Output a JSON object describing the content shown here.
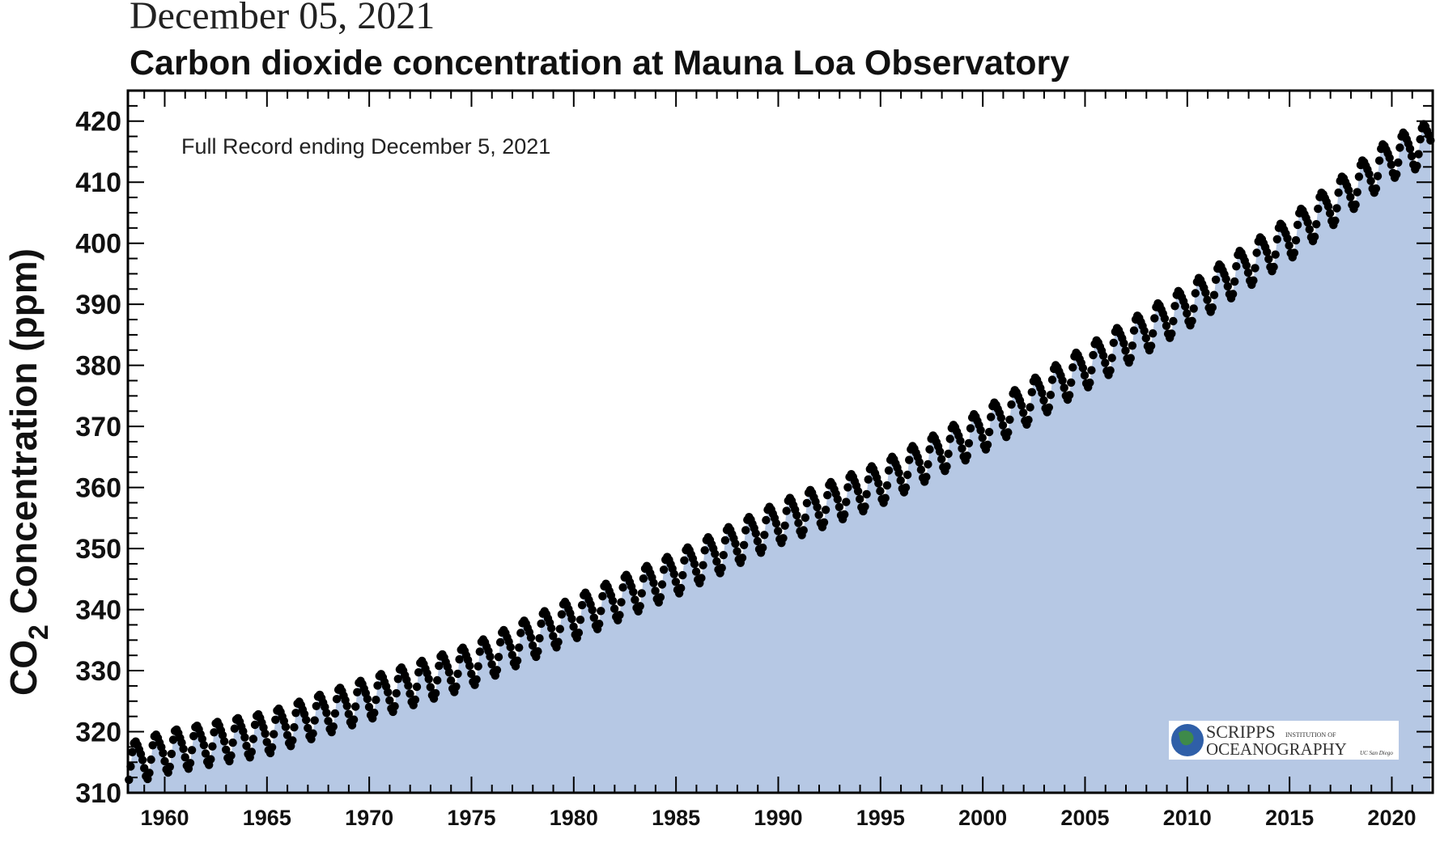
{
  "header": {
    "date_title": "December 05, 2021"
  },
  "chart_data": {
    "type": "scatter",
    "title": "Carbon dioxide concentration at Mauna Loa Observatory",
    "annotation": "Full Record ending December 5, 2021",
    "ylabel": "CO2 Concentration (ppm)",
    "ylabel_main": "CO",
    "ylabel_sub": "2",
    "ylabel_rest": " Concentration (ppm)",
    "xlabel": "",
    "xlim": [
      1958.2,
      2022.0
    ],
    "ylim": [
      310,
      425
    ],
    "x_ticks": [
      1960,
      1965,
      1970,
      1975,
      1980,
      1985,
      1990,
      1995,
      2000,
      2005,
      2010,
      2015,
      2020
    ],
    "y_ticks": [
      310,
      320,
      330,
      340,
      350,
      360,
      370,
      380,
      390,
      400,
      410,
      420
    ],
    "fill_color": "#b6c8e4",
    "point_color": "#000000",
    "series": [
      {
        "x_start": 1958.25,
        "x_end": 2021.92,
        "step_years": 0.0833,
        "trend_points": [
          [
            1958.5,
            315.2
          ],
          [
            1960,
            316.9
          ],
          [
            1965,
            320.0
          ],
          [
            1970,
            325.7
          ],
          [
            1975,
            331.1
          ],
          [
            1980,
            338.8
          ],
          [
            1985,
            346.1
          ],
          [
            1990,
            354.4
          ],
          [
            1995,
            360.9
          ],
          [
            2000,
            369.6
          ],
          [
            2005,
            379.8
          ],
          [
            2010,
            389.9
          ],
          [
            2015,
            401.0
          ],
          [
            2020,
            414.2
          ],
          [
            2021.9,
            416.8
          ]
        ],
        "seasonal_amplitude_ppm": 3.2
      }
    ],
    "logo": {
      "line1": "SCRIPPS",
      "line1_small": "INSTITUTION OF",
      "line2": "OCEANOGRAPHY",
      "line2_small": "UC San Diego"
    }
  }
}
